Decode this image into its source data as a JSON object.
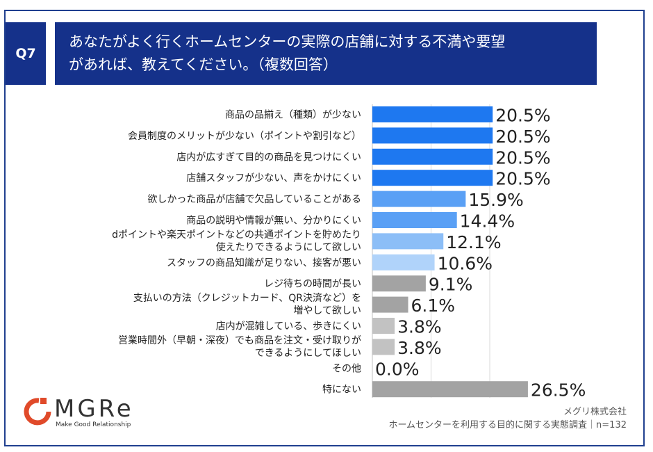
{
  "question": {
    "badge": "Q7",
    "line1": "あなたがよく行くホームセンターの実際の店舗に対する不満や要望",
    "line2": "があれば、教えてください。（複数回答）"
  },
  "chart_data": {
    "type": "bar",
    "orientation": "horizontal",
    "title": "あなたがよく行くホームセンターの実際の店舗に対する不満や要望があれば、教えてください。（複数回答）",
    "unit": "%",
    "categories": [
      [
        "商品の品揃え（種類）が少ない"
      ],
      [
        "会員制度のメリットが少ない（ポイントや割引など）"
      ],
      [
        "店内が広すぎて目的の商品を見つけにくい"
      ],
      [
        "店舗スタッフが少ない、声をかけにくい"
      ],
      [
        "欲しかった商品が店舗で欠品していることがある"
      ],
      [
        "商品の説明や情報が無い、分かりにくい"
      ],
      [
        "dポイントや楽天ポイントなどの共通ポイントを貯めたり",
        "使えたりできるようにして欲しい"
      ],
      [
        "スタッフの商品知識が足りない、接客が悪い"
      ],
      [
        "レジ待ちの時間が長い"
      ],
      [
        "支払いの方法（クレジットカード、QR決済など）を",
        "増やして欲しい"
      ],
      [
        "店内が混雑している、歩きにくい"
      ],
      [
        "営業時間外（早朝・深夜）でも商品を注文・受け取りが",
        "できるようにしてほしい"
      ],
      [
        "その他"
      ],
      [
        "特にない"
      ]
    ],
    "values": [
      20.5,
      20.5,
      20.5,
      20.5,
      15.9,
      14.4,
      12.1,
      10.6,
      9.1,
      6.1,
      3.8,
      3.8,
      0.0,
      26.5
    ],
    "value_labels": [
      "20.5%",
      "20.5%",
      "20.5%",
      "20.5%",
      "15.9%",
      "14.4%",
      "12.1%",
      "10.6%",
      "9.1%",
      "6.1%",
      "3.8%",
      "3.8%",
      "0.0%",
      "26.5%"
    ],
    "bar_colors": [
      "#1e78f0",
      "#1e78f0",
      "#1e78f0",
      "#1e78f0",
      "#5aa0f5",
      "#5aa0f5",
      "#8cbef7",
      "#b0d3fa",
      "#a3a3a3",
      "#a3a3a3",
      "#c2c2c2",
      "#c2c2c2",
      "#c2c2c2",
      "#a3a3a3"
    ],
    "xlim": [
      0,
      30
    ],
    "gridlines": [
      10,
      20
    ]
  },
  "branding": {
    "logo_text": "MGRe",
    "tagline": "Make Good Relationship",
    "logo_color": "#e04a2a"
  },
  "source": {
    "company": "メグリ株式会社",
    "survey": "ホームセンターを利用する目的に関する実態調査｜n=132"
  }
}
